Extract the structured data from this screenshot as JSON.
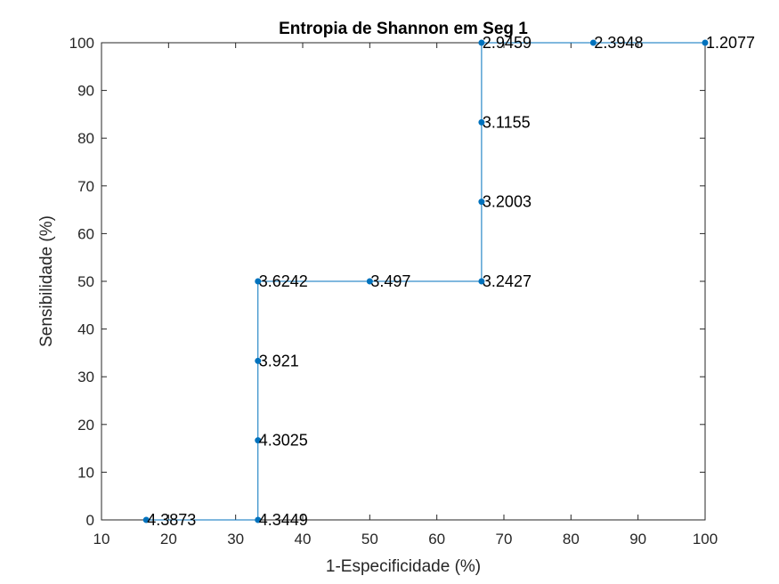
{
  "chart_data": {
    "type": "line",
    "title": "Entropia de Shannon em Seg 1",
    "xlabel": "1-Especificidade (%)",
    "ylabel": "Sensibilidade (%)",
    "xlim": [
      10,
      100
    ],
    "ylim": [
      0,
      100
    ],
    "xticks": [
      10,
      20,
      30,
      40,
      50,
      60,
      70,
      80,
      90,
      100
    ],
    "yticks": [
      0,
      10,
      20,
      30,
      40,
      50,
      60,
      70,
      80,
      90,
      100
    ],
    "grid": false,
    "line_color": "#0072BD",
    "marker_color": "#0072BD",
    "points": [
      {
        "x": 16.67,
        "y": 0,
        "label": "4.3873"
      },
      {
        "x": 33.33,
        "y": 0,
        "label": "4.3449"
      },
      {
        "x": 33.33,
        "y": 16.67,
        "label": "4.3025"
      },
      {
        "x": 33.33,
        "y": 33.33,
        "label": "3.921"
      },
      {
        "x": 33.33,
        "y": 50,
        "label": "3.6242"
      },
      {
        "x": 50,
        "y": 50,
        "label": "3.497"
      },
      {
        "x": 66.67,
        "y": 50,
        "label": "3.2427"
      },
      {
        "x": 66.67,
        "y": 66.67,
        "label": "3.2003"
      },
      {
        "x": 66.67,
        "y": 83.33,
        "label": "3.1155"
      },
      {
        "x": 66.67,
        "y": 100,
        "label": "2.9459"
      },
      {
        "x": 83.33,
        "y": 100,
        "label": "2.3948"
      },
      {
        "x": 100,
        "y": 100,
        "label": "1.2077"
      }
    ]
  }
}
